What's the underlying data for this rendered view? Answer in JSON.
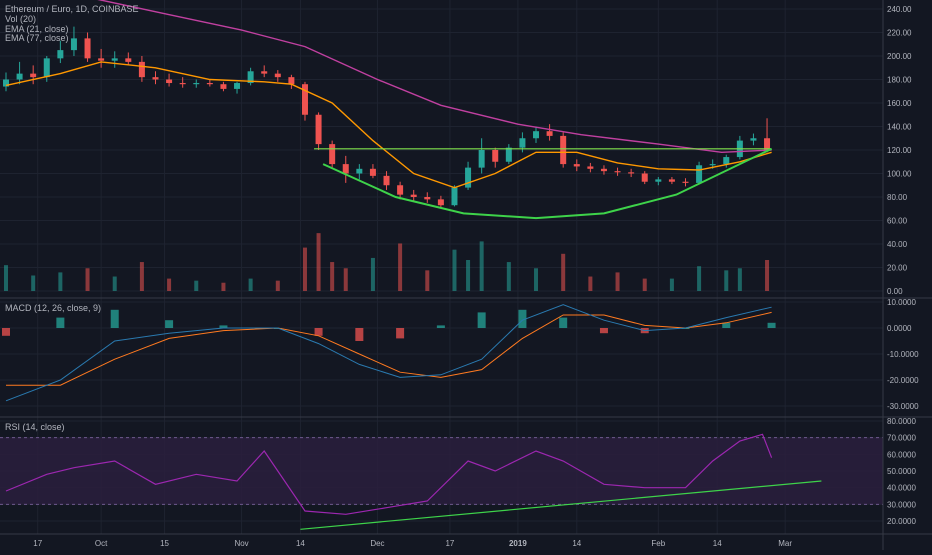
{
  "pane_labels": {
    "price_title": "Ethereum / Euro, 1D, COINBASE",
    "vol": "Vol (20)",
    "ema21": "EMA (21, close)",
    "ema77": "EMA (77, close)",
    "macd": "MACD (12, 26, close, 9)",
    "rsi": "RSI (14, close)"
  },
  "x_axis_labels": [
    "17",
    "Oct",
    "15",
    "Nov",
    "14",
    "Dec",
    "17",
    "2019",
    "14",
    "Feb",
    "14",
    "Mar"
  ],
  "price_axis_labels": [
    "240.00",
    "220.00",
    "200.00",
    "180.00",
    "160.00",
    "140.00",
    "120.00",
    "100.00",
    "80.00",
    "60.00",
    "40.00",
    "20.00",
    "0.00"
  ],
  "macd_axis_labels": [
    "10.0000",
    "0.0000",
    "-10.0000",
    "-20.0000",
    "-30.0000"
  ],
  "rsi_axis_labels": [
    "80.0000",
    "70.0000",
    "60.0000",
    "50.0000",
    "40.0000",
    "30.0000",
    "20.0000"
  ],
  "colors": {
    "background": "#131722",
    "grid": "#1e2330",
    "up": "#26a69a",
    "down": "#ef5350",
    "ema21": "#ff9800",
    "ema77": "#c040a0",
    "cup_curve": "#3ed34a",
    "neckline": "#7fe04a",
    "macd_line": "#2a7ab0",
    "signal_line": "#ff7a20",
    "rsi_line": "#9c27b0",
    "rsi_band": "#2a1f3d",
    "trendline": "#3ed34a"
  },
  "chart_data": [
    {
      "type": "candlestick",
      "pane": "price",
      "title": "Ethereum / Euro, 1D, COINBASE",
      "ylim": [
        -10,
        250
      ],
      "x_range": [
        "2018-09-10",
        "2019-03-07"
      ],
      "candles": [
        {
          "date": "2018-09-10",
          "o": 174,
          "h": 186,
          "l": 170,
          "c": 180
        },
        {
          "date": "2018-09-13",
          "o": 180,
          "h": 195,
          "l": 176,
          "c": 185
        },
        {
          "date": "2018-09-16",
          "o": 185,
          "h": 192,
          "l": 176,
          "c": 182
        },
        {
          "date": "2018-09-19",
          "o": 182,
          "h": 200,
          "l": 178,
          "c": 198
        },
        {
          "date": "2018-09-22",
          "o": 198,
          "h": 213,
          "l": 194,
          "c": 205
        },
        {
          "date": "2018-09-25",
          "o": 205,
          "h": 225,
          "l": 200,
          "c": 215
        },
        {
          "date": "2018-09-28",
          "o": 215,
          "h": 220,
          "l": 195,
          "c": 198
        },
        {
          "date": "2018-10-01",
          "o": 198,
          "h": 206,
          "l": 190,
          "c": 196
        },
        {
          "date": "2018-10-04",
          "o": 196,
          "h": 204,
          "l": 190,
          "c": 198
        },
        {
          "date": "2018-10-07",
          "o": 198,
          "h": 203,
          "l": 192,
          "c": 195
        },
        {
          "date": "2018-10-10",
          "o": 195,
          "h": 200,
          "l": 178,
          "c": 182
        },
        {
          "date": "2018-10-13",
          "o": 182,
          "h": 187,
          "l": 176,
          "c": 180
        },
        {
          "date": "2018-10-16",
          "o": 180,
          "h": 185,
          "l": 174,
          "c": 177
        },
        {
          "date": "2018-10-19",
          "o": 177,
          "h": 182,
          "l": 173,
          "c": 176
        },
        {
          "date": "2018-10-22",
          "o": 176,
          "h": 180,
          "l": 173,
          "c": 177
        },
        {
          "date": "2018-10-25",
          "o": 177,
          "h": 180,
          "l": 174,
          "c": 176
        },
        {
          "date": "2018-10-28",
          "o": 176,
          "h": 178,
          "l": 170,
          "c": 172
        },
        {
          "date": "2018-10-31",
          "o": 172,
          "h": 178,
          "l": 168,
          "c": 177
        },
        {
          "date": "2018-11-03",
          "o": 177,
          "h": 190,
          "l": 175,
          "c": 187
        },
        {
          "date": "2018-11-06",
          "o": 187,
          "h": 192,
          "l": 182,
          "c": 185
        },
        {
          "date": "2018-11-09",
          "o": 185,
          "h": 188,
          "l": 178,
          "c": 182
        },
        {
          "date": "2018-11-12",
          "o": 182,
          "h": 184,
          "l": 172,
          "c": 176
        },
        {
          "date": "2018-11-15",
          "o": 176,
          "h": 178,
          "l": 145,
          "c": 150
        },
        {
          "date": "2018-11-18",
          "o": 150,
          "h": 152,
          "l": 120,
          "c": 125
        },
        {
          "date": "2018-11-21",
          "o": 125,
          "h": 128,
          "l": 104,
          "c": 108
        },
        {
          "date": "2018-11-24",
          "o": 108,
          "h": 115,
          "l": 92,
          "c": 100
        },
        {
          "date": "2018-11-27",
          "o": 100,
          "h": 108,
          "l": 95,
          "c": 104
        },
        {
          "date": "2018-11-30",
          "o": 104,
          "h": 108,
          "l": 96,
          "c": 98
        },
        {
          "date": "2018-12-03",
          "o": 98,
          "h": 102,
          "l": 86,
          "c": 90
        },
        {
          "date": "2018-12-06",
          "o": 90,
          "h": 93,
          "l": 78,
          "c": 82
        },
        {
          "date": "2018-12-09",
          "o": 82,
          "h": 86,
          "l": 76,
          "c": 80
        },
        {
          "date": "2018-12-12",
          "o": 80,
          "h": 84,
          "l": 75,
          "c": 78
        },
        {
          "date": "2018-12-15",
          "o": 78,
          "h": 81,
          "l": 71,
          "c": 73
        },
        {
          "date": "2018-12-18",
          "o": 73,
          "h": 90,
          "l": 72,
          "c": 88
        },
        {
          "date": "2018-12-21",
          "o": 88,
          "h": 110,
          "l": 86,
          "c": 105
        },
        {
          "date": "2018-12-24",
          "o": 105,
          "h": 130,
          "l": 100,
          "c": 120
        },
        {
          "date": "2018-12-27",
          "o": 120,
          "h": 122,
          "l": 105,
          "c": 110
        },
        {
          "date": "2018-12-30",
          "o": 110,
          "h": 125,
          "l": 108,
          "c": 122
        },
        {
          "date": "2019-01-02",
          "o": 122,
          "h": 135,
          "l": 118,
          "c": 130
        },
        {
          "date": "2019-01-05",
          "o": 130,
          "h": 140,
          "l": 126,
          "c": 136
        },
        {
          "date": "2019-01-08",
          "o": 136,
          "h": 142,
          "l": 128,
          "c": 132
        },
        {
          "date": "2019-01-11",
          "o": 132,
          "h": 135,
          "l": 105,
          "c": 108
        },
        {
          "date": "2019-01-14",
          "o": 108,
          "h": 112,
          "l": 102,
          "c": 106
        },
        {
          "date": "2019-01-17",
          "o": 106,
          "h": 109,
          "l": 101,
          "c": 104
        },
        {
          "date": "2019-01-20",
          "o": 104,
          "h": 107,
          "l": 99,
          "c": 102
        },
        {
          "date": "2019-01-23",
          "o": 102,
          "h": 105,
          "l": 98,
          "c": 101
        },
        {
          "date": "2019-01-26",
          "o": 101,
          "h": 104,
          "l": 97,
          "c": 100
        },
        {
          "date": "2019-01-29",
          "o": 100,
          "h": 102,
          "l": 91,
          "c": 93
        },
        {
          "date": "2019-02-01",
          "o": 93,
          "h": 97,
          "l": 90,
          "c": 95
        },
        {
          "date": "2019-02-04",
          "o": 95,
          "h": 97,
          "l": 91,
          "c": 93
        },
        {
          "date": "2019-02-07",
          "o": 93,
          "h": 96,
          "l": 89,
          "c": 92
        },
        {
          "date": "2019-02-10",
          "o": 92,
          "h": 110,
          "l": 91,
          "c": 107
        },
        {
          "date": "2019-02-13",
          "o": 107,
          "h": 112,
          "l": 104,
          "c": 108
        },
        {
          "date": "2019-02-16",
          "o": 108,
          "h": 116,
          "l": 105,
          "c": 114
        },
        {
          "date": "2019-02-19",
          "o": 114,
          "h": 132,
          "l": 112,
          "c": 128
        },
        {
          "date": "2019-02-22",
          "o": 128,
          "h": 134,
          "l": 124,
          "c": 130
        },
        {
          "date": "2019-02-25",
          "o": 130,
          "h": 147,
          "l": 118,
          "c": 120
        }
      ],
      "series": [
        {
          "name": "EMA (21, close)",
          "x": [
            "2018-09-10",
            "2018-09-22",
            "2018-10-01",
            "2018-10-13",
            "2018-10-25",
            "2018-11-06",
            "2018-11-12",
            "2018-11-21",
            "2018-11-30",
            "2018-12-09",
            "2018-12-18",
            "2018-12-27",
            "2019-01-05",
            "2019-01-14",
            "2019-01-23",
            "2019-02-01",
            "2019-02-10",
            "2019-02-19",
            "2019-02-26"
          ],
          "values": [
            175,
            185,
            195,
            190,
            180,
            178,
            176,
            160,
            128,
            100,
            88,
            100,
            118,
            118,
            109,
            104,
            103,
            110,
            118
          ]
        },
        {
          "name": "EMA (77, close)",
          "x": [
            "2018-09-10",
            "2018-09-28",
            "2018-10-15",
            "2018-11-01",
            "2018-11-15",
            "2018-12-01",
            "2018-12-15",
            "2019-01-01",
            "2019-01-15",
            "2019-02-01",
            "2019-02-15",
            "2019-02-26"
          ],
          "values": [
            258,
            250,
            236,
            222,
            208,
            180,
            158,
            142,
            133,
            125,
            118,
            120
          ]
        }
      ],
      "annotations": [
        {
          "type": "neckline",
          "y": 121,
          "x_range": [
            "2018-11-17",
            "2019-02-26"
          ]
        },
        {
          "type": "cup",
          "x": [
            "2018-11-19",
            "2018-12-05",
            "2018-12-20",
            "2019-01-05",
            "2019-01-20",
            "2019-02-05",
            "2019-02-26"
          ],
          "values": [
            108,
            80,
            66,
            62,
            66,
            82,
            121
          ]
        }
      ]
    },
    {
      "type": "bar",
      "pane": "volume",
      "title": "Vol (20)",
      "ylim": [
        0,
        60
      ],
      "x": [
        "2018-09-10",
        "2018-09-16",
        "2018-09-22",
        "2018-09-28",
        "2018-10-04",
        "2018-10-10",
        "2018-10-16",
        "2018-10-22",
        "2018-10-28",
        "2018-11-03",
        "2018-11-09",
        "2018-11-15",
        "2018-11-18",
        "2018-11-21",
        "2018-11-24",
        "2018-11-30",
        "2018-12-06",
        "2018-12-12",
        "2018-12-18",
        "2018-12-21",
        "2018-12-24",
        "2018-12-30",
        "2019-01-05",
        "2019-01-11",
        "2019-01-17",
        "2019-01-23",
        "2019-01-29",
        "2019-02-04",
        "2019-02-10",
        "2019-02-16",
        "2019-02-19",
        "2019-02-25"
      ],
      "values": [
        25,
        15,
        18,
        22,
        14,
        28,
        12,
        10,
        8,
        12,
        10,
        42,
        56,
        28,
        22,
        32,
        46,
        20,
        40,
        30,
        48,
        28,
        22,
        36,
        14,
        18,
        12,
        12,
        24,
        20,
        22,
        30
      ],
      "up": [
        true,
        true,
        true,
        false,
        true,
        false,
        false,
        true,
        false,
        true,
        false,
        false,
        false,
        false,
        false,
        true,
        false,
        false,
        true,
        true,
        true,
        true,
        true,
        false,
        false,
        false,
        false,
        true,
        true,
        true,
        true,
        false
      ]
    },
    {
      "type": "line",
      "pane": "macd",
      "title": "MACD (12, 26, close, 9)",
      "ylim": [
        -33,
        12
      ],
      "x": [
        "2018-09-10",
        "2018-09-22",
        "2018-10-04",
        "2018-10-16",
        "2018-10-28",
        "2018-11-09",
        "2018-11-18",
        "2018-11-27",
        "2018-12-06",
        "2018-12-15",
        "2018-12-24",
        "2019-01-02",
        "2019-01-11",
        "2019-01-20",
        "2019-01-29",
        "2019-02-07",
        "2019-02-16",
        "2019-02-26"
      ],
      "series": [
        {
          "name": "MACD",
          "values": [
            -28,
            -20,
            -5,
            -2,
            0,
            0,
            -6,
            -14,
            -19,
            -18,
            -12,
            3,
            9,
            3,
            -1,
            0,
            4,
            8
          ]
        },
        {
          "name": "Signal",
          "values": [
            -22,
            -22,
            -12,
            -4,
            -1,
            0,
            -3,
            -10,
            -17,
            -19,
            -16,
            -4,
            5,
            5,
            1,
            0,
            2,
            6
          ]
        },
        {
          "name": "Histogram",
          "values": [
            -3,
            4,
            7,
            3,
            1,
            0,
            -3,
            -5,
            -4,
            1,
            6,
            7,
            4,
            -2,
            -2,
            0,
            2,
            2
          ]
        }
      ]
    },
    {
      "type": "line",
      "pane": "rsi",
      "title": "RSI (14, close)",
      "ylim": [
        12,
        85
      ],
      "x": [
        "2018-09-10",
        "2018-09-19",
        "2018-09-25",
        "2018-10-04",
        "2018-10-13",
        "2018-10-22",
        "2018-10-31",
        "2018-11-06",
        "2018-11-15",
        "2018-11-24",
        "2018-12-03",
        "2018-12-12",
        "2018-12-21",
        "2018-12-27",
        "2019-01-05",
        "2019-01-11",
        "2019-01-20",
        "2019-01-29",
        "2019-02-07",
        "2019-02-13",
        "2019-02-19",
        "2019-02-24",
        "2019-02-26"
      ],
      "values": [
        38,
        48,
        52,
        56,
        42,
        48,
        44,
        62,
        26,
        24,
        28,
        32,
        56,
        50,
        62,
        56,
        42,
        40,
        40,
        56,
        68,
        72,
        58
      ],
      "band": [
        30,
        70
      ],
      "trendline": {
        "x": [
          "2018-11-14",
          "2019-03-09"
        ],
        "values": [
          15,
          44
        ]
      }
    }
  ]
}
